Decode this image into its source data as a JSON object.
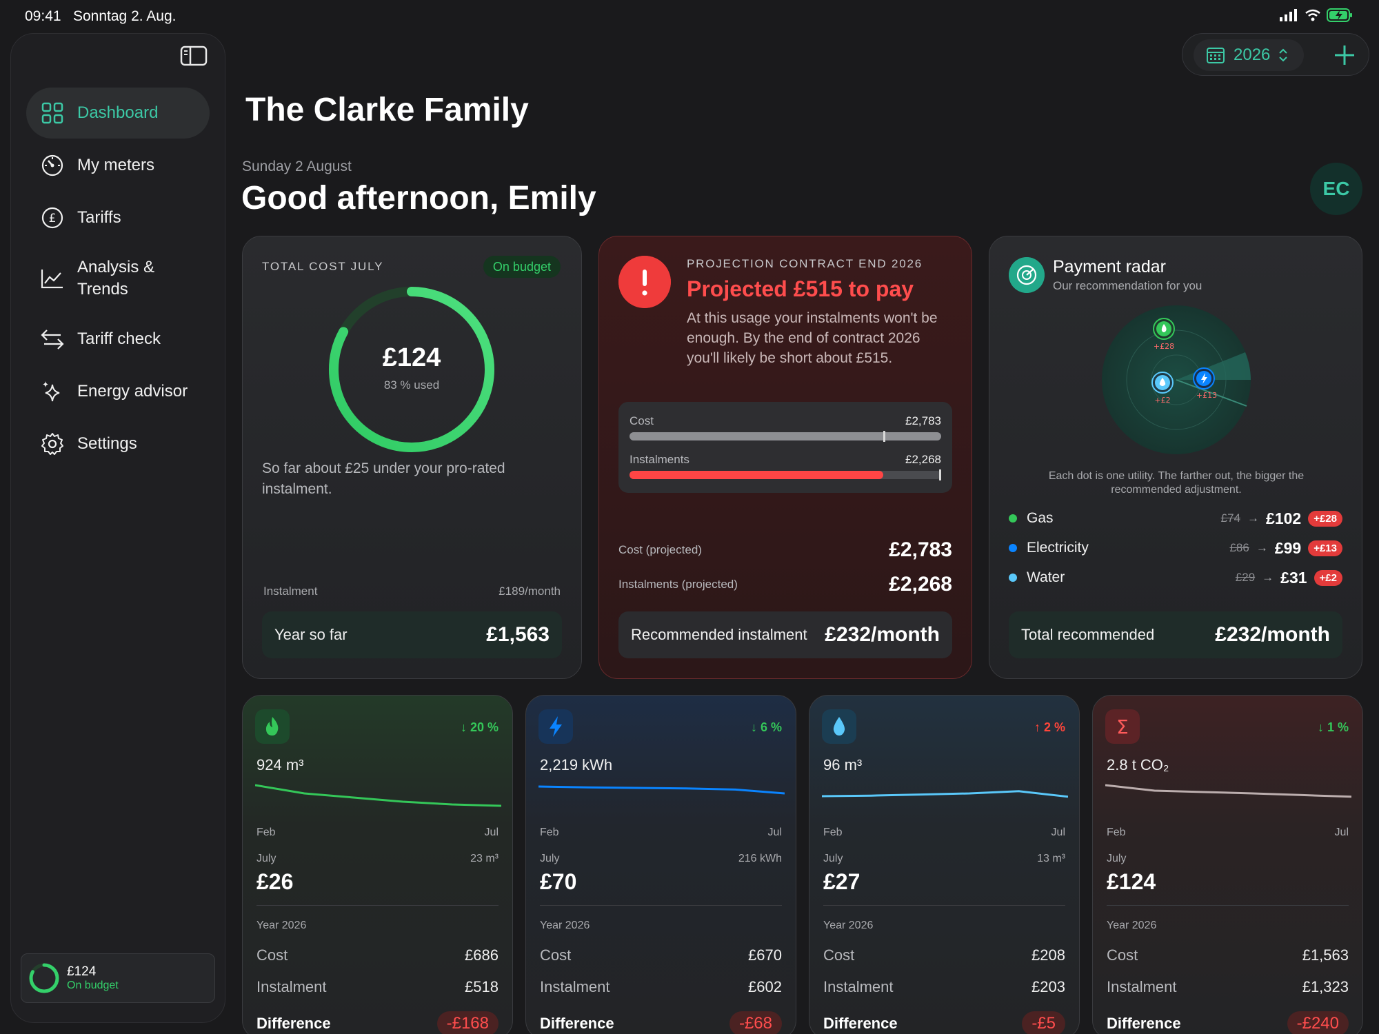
{
  "status": {
    "time": "09:41",
    "date": "Sonntag 2. Aug."
  },
  "sidebar": {
    "items": [
      {
        "label": "Dashboard",
        "icon": "dashboard-grid-icon",
        "active": true
      },
      {
        "label": "My meters",
        "icon": "gauge-icon"
      },
      {
        "label": "Tariffs",
        "icon": "pound-icon"
      },
      {
        "label": "Analysis & Trends",
        "icon": "trend-chart-icon"
      },
      {
        "label": "Tariff check",
        "icon": "swap-arrows-icon"
      },
      {
        "label": "Energy advisor",
        "icon": "sparkles-icon"
      },
      {
        "label": "Settings",
        "icon": "gear-icon"
      }
    ],
    "footer": {
      "amount": "£124",
      "status": "On budget",
      "progress": 0.83
    }
  },
  "topbar": {
    "year": "2026"
  },
  "header": {
    "family": "The Clarke Family",
    "date": "Sunday 2 August",
    "greeting": "Good afternoon, Emily",
    "avatar": "EC"
  },
  "cost_card": {
    "kicker": "TOTAL COST JULY",
    "badge": "On budget",
    "amount": "£124",
    "used": "83 % used",
    "used_fraction": 0.83,
    "note": "So far about £25 under your pro-rated instalment.",
    "instalment_label": "Instalment",
    "instalment_value": "£189/month",
    "ytd_label": "Year so far",
    "ytd_value": "£1,563"
  },
  "projection_card": {
    "kicker": "PROJECTION CONTRACT END 2026",
    "title": "Projected £515 to pay",
    "desc": "At this usage your instalments won't be enough. By the end of contract 2026 you'll likely be short about £515.",
    "cost_label": "Cost",
    "cost_value": "£2,783",
    "cost_fraction": 1.0,
    "inst_label": "Instalments",
    "inst_value": "£2,268",
    "inst_fraction": 0.815,
    "proj_cost_label": "Cost (projected)",
    "proj_cost_value": "£2,783",
    "proj_inst_label": "Instalments (projected)",
    "proj_inst_value": "£2,268",
    "rec_label": "Recommended instalment",
    "rec_value": "£232/month"
  },
  "radar_card": {
    "title": "Payment radar",
    "subtitle": "Our recommendation for you",
    "note": "Each dot is one utility. The farther out, the bigger the recommended adjustment.",
    "dots": [
      {
        "label": "+£28",
        "color": "#34c759"
      },
      {
        "label": "+£2",
        "color": "#5ac8fa"
      },
      {
        "label": "+£13",
        "color": "#0a84ff"
      }
    ],
    "utilities": [
      {
        "name": "Gas",
        "color": "#34c759",
        "old": "£74",
        "new": "£102",
        "delta": "+£28"
      },
      {
        "name": "Electricity",
        "color": "#0a84ff",
        "old": "£86",
        "new": "£99",
        "delta": "+£13"
      },
      {
        "name": "Water",
        "color": "#5ac8fa",
        "old": "£29",
        "new": "£31",
        "delta": "+£2"
      }
    ],
    "total_label": "Total recommended",
    "total_value": "£232/month"
  },
  "tiles": [
    {
      "icon": "flame-icon",
      "color": "#34c759",
      "trend": "↓ 20 %",
      "trend_color": "#34c759",
      "total": "924 m³",
      "x_start": "Feb",
      "x_end": "Jul",
      "spark": [
        1.0,
        0.7,
        0.55,
        0.4,
        0.3,
        0.25
      ],
      "month": "July",
      "usage": "23 m³",
      "month_amt": "£26",
      "year_label": "Year 2026",
      "cost_label": "Cost",
      "cost": "£686",
      "inst_label": "Instalment",
      "inst": "£518",
      "diff_label": "Difference",
      "diff": "-£168"
    },
    {
      "icon": "bolt-icon",
      "color": "#0a84ff",
      "trend": "↓ 6 %",
      "trend_color": "#34c759",
      "total": "2,219 kWh",
      "x_start": "Feb",
      "x_end": "Jul",
      "spark": [
        0.95,
        0.92,
        0.9,
        0.88,
        0.84,
        0.7
      ],
      "month": "July",
      "usage": "216 kWh",
      "month_amt": "£70",
      "year_label": "Year 2026",
      "cost_label": "Cost",
      "cost": "£670",
      "inst_label": "Instalment",
      "inst": "£602",
      "diff_label": "Difference",
      "diff": "-£68"
    },
    {
      "icon": "drop-icon",
      "color": "#5ac8fa",
      "trend": "↑ 2 %",
      "trend_color": "#ff453a",
      "total": "96 m³",
      "x_start": "Feb",
      "x_end": "Jul",
      "spark": [
        0.6,
        0.62,
        0.66,
        0.7,
        0.78,
        0.58
      ],
      "month": "July",
      "usage": "13 m³",
      "month_amt": "£27",
      "year_label": "Year 2026",
      "cost_label": "Cost",
      "cost": "£208",
      "inst_label": "Instalment",
      "inst": "£203",
      "diff_label": "Difference",
      "diff": "-£5"
    },
    {
      "icon": "sigma-icon",
      "color": "#e33b3b",
      "trend": "↓ 1 %",
      "trend_color": "#34c759",
      "total": "2.8 t CO₂",
      "x_start": "Feb",
      "x_end": "Jul",
      "spark": [
        1.0,
        0.8,
        0.75,
        0.7,
        0.64,
        0.58
      ],
      "month": "July",
      "usage": "",
      "month_amt": "£124",
      "year_label": "Year 2026",
      "cost_label": "Cost",
      "cost": "£1,563",
      "inst_label": "Instalment",
      "inst": "£1,323",
      "diff_label": "Difference",
      "diff": "-£240"
    }
  ]
}
